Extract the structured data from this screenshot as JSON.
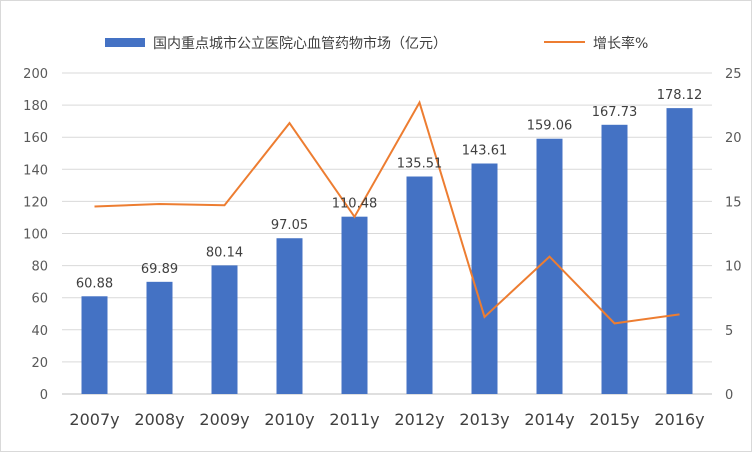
{
  "chart_data": {
    "type": "bar",
    "categories": [
      "2007y",
      "2008y",
      "2009y",
      "2010y",
      "2011y",
      "2012y",
      "2013y",
      "2014y",
      "2015y",
      "2016y"
    ],
    "series": [
      {
        "name": "国内重点城市公立医院心血管药物市场（亿元）",
        "type": "bar",
        "axis": "left",
        "color": "#4472c4",
        "values": [
          60.88,
          69.89,
          80.14,
          97.05,
          110.48,
          135.51,
          143.61,
          159.06,
          167.73,
          178.12
        ],
        "data_labels": [
          "60.88",
          "69.89",
          "80.14",
          "97.05",
          "110.48",
          "135.51",
          "143.61",
          "159.06",
          "167.73",
          "178.12"
        ]
      },
      {
        "name": "增长率%",
        "type": "line",
        "axis": "right",
        "color": "#ed7d31",
        "values": [
          14.6,
          14.8,
          14.7,
          21.1,
          13.8,
          22.7,
          6.0,
          10.7,
          5.5,
          6.2
        ]
      }
    ],
    "y_left": {
      "min": 0,
      "max": 200,
      "ticks": [
        0,
        20,
        40,
        60,
        80,
        100,
        120,
        140,
        160,
        180,
        200
      ]
    },
    "y_right": {
      "min": 0,
      "max": 25,
      "ticks": [
        0,
        5,
        10,
        15,
        20,
        25
      ]
    },
    "grid": true,
    "legend_position": "top"
  }
}
